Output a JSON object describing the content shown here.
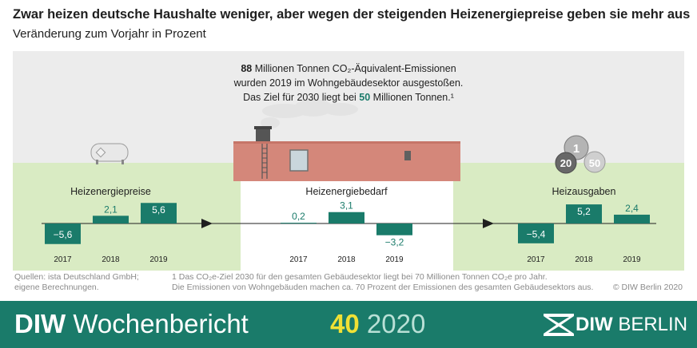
{
  "header": {
    "title": "Zwar heizen deutsche Haushalte weniger, aber wegen der steigenden Heizenergiepreise geben sie mehr aus",
    "subtitle": "Veränderung zum Vorjahr in Prozent"
  },
  "info": {
    "emissions_number": "88",
    "line1_rest": " Millionen Tonnen CO₂-Äquivalent-Emissionen",
    "line2": "wurden 2019 im Wohngebäudesektor ausgestoßen.",
    "line3_pre": "Das Ziel für 2030 liegt bei ",
    "target_number": "50",
    "line3_post": " Millionen Tonnen.¹"
  },
  "chart_data": {
    "type": "bar",
    "panels": [
      {
        "title": "Heizenergiepreise",
        "categories": [
          "2017",
          "2018",
          "2019"
        ],
        "values": [
          -5.6,
          2.1,
          5.6
        ],
        "labels": [
          "−5,6",
          "2,1",
          "5,6"
        ]
      },
      {
        "title": "Heizenergiebedarf",
        "categories": [
          "2017",
          "2018",
          "2019"
        ],
        "values": [
          0.2,
          3.1,
          -3.2
        ],
        "labels": [
          "0,2",
          "3,1",
          "−3,2"
        ]
      },
      {
        "title": "Heizausgaben",
        "categories": [
          "2017",
          "2018",
          "2019"
        ],
        "values": [
          -5.4,
          5.2,
          2.4
        ],
        "labels": [
          "−5,4",
          "5,2",
          "2,4"
        ]
      }
    ],
    "bar_color": "#1a7b6a"
  },
  "coins": {
    "coin1": "1",
    "coin2": "20",
    "coin3": "50"
  },
  "notes": {
    "sources_line1": "Quellen: ista Deutschland GmbH;",
    "sources_line2": "eigene Berechnungen.",
    "footnote_line1": "1  Das CO₂e-Ziel 2030 für den gesamten Gebäudesektor liegt bei 70 Millionen Tonnen CO₂e pro Jahr.",
    "footnote_line2": "Die Emissionen von Wohngebäuden machen ca. 70 Prozent der Emissionen des gesamten Gebäudesektors aus.",
    "copyright": "© DIW Berlin 2020"
  },
  "footer": {
    "brand_bold": "DIW",
    "brand_rest": " Wochenbericht",
    "issue_number": "40",
    "issue_year": " 2020",
    "logo_bold": "DIW",
    "logo_rest": " BERLIN"
  },
  "colors": {
    "accent": "#1a7b6a",
    "sky": "#ececec",
    "grass": "#d9ebc3",
    "roof": "#d4877a"
  }
}
